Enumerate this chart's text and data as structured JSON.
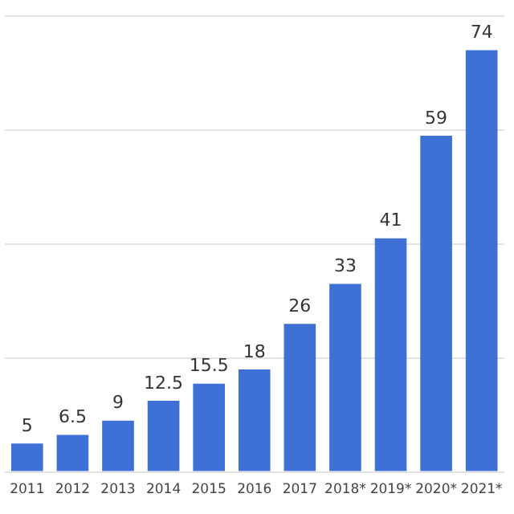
{
  "chart_data": {
    "type": "bar",
    "categories": [
      "2011",
      "2012",
      "2013",
      "2014",
      "2015",
      "2016",
      "2017",
      "2018*",
      "2019*",
      "2020*",
      "2021*"
    ],
    "values": [
      5,
      6.5,
      9,
      12.5,
      15.5,
      18,
      26,
      33,
      41,
      59,
      74
    ],
    "color": "#3e70d6",
    "data_labels": true,
    "grid": "y",
    "tick_labels": "x"
  }
}
